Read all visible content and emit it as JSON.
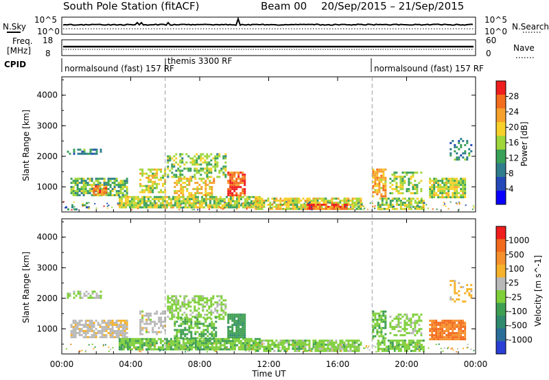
{
  "title": {
    "station": "South Pole Station (fitACF)",
    "beam": "Beam 00",
    "dates": "20/Sep/2015 – 21/Sep/2015"
  },
  "top_panels": {
    "nsky": {
      "left_label": "N.Sky",
      "right_label": "N.Search",
      "left_ticks": [
        "10^5",
        "10^0"
      ],
      "right_ticks": [
        "10^5",
        "10^0"
      ]
    },
    "freq": {
      "left_label_1": "Freq.",
      "left_label_2": "[MHz]",
      "right_label": "Nave",
      "left_ticks": [
        "18",
        "8"
      ],
      "right_ticks": [
        "60",
        "0"
      ]
    },
    "cpid": {
      "label": "CPID",
      "segments": [
        {
          "text": "normalsound (fast) 157 RF"
        },
        {
          "text": "themis 3300 RF"
        },
        {
          "text": "normalsound (fast) 157 RF"
        }
      ]
    }
  },
  "axes": {
    "x_ticks": [
      "00:00",
      "04:00",
      "08:00",
      "12:00",
      "16:00",
      "20:00",
      "00:00"
    ],
    "x_label": "Time UT",
    "y_label": "Slant Range [km]",
    "y_ticks": [
      "1000",
      "2000",
      "3000",
      "4000"
    ]
  },
  "chart_data": [
    {
      "type": "heatmap",
      "name": "power",
      "x_range_hours": [
        0,
        24
      ],
      "y_range_km": [
        180,
        4600
      ],
      "mode_changes_hours": [
        6.0,
        18.0
      ],
      "colorbar": {
        "label": "Power [dB]",
        "ticks": [
          "28",
          "24",
          "20",
          "16",
          "12",
          "8",
          "4"
        ],
        "range": [
          0,
          32
        ],
        "colors": [
          "#0a00ff",
          "#2549b8",
          "#2f7d8d",
          "#3aa159",
          "#9fd63a",
          "#f7d02a",
          "#f6a12c",
          "#f26d1d",
          "#ef1d1d"
        ]
      },
      "blobs": [
        {
          "t": [
            0.3,
            2.3
          ],
          "r": [
            2050,
            2250
          ],
          "val": 10,
          "d": 0.55
        },
        {
          "t": [
            0.5,
            3.8
          ],
          "r": [
            700,
            1300
          ],
          "val": 14,
          "d": 0.75
        },
        {
          "t": [
            1.8,
            2.6
          ],
          "r": [
            750,
            1050
          ],
          "val": 25,
          "d": 0.8
        },
        {
          "t": [
            0.2,
            1.6
          ],
          "r": [
            250,
            500
          ],
          "val": 9,
          "d": 0.35
        },
        {
          "t": [
            3.3,
            11.5
          ],
          "r": [
            300,
            700
          ],
          "val": 17,
          "d": 0.85
        },
        {
          "t": [
            4.5,
            6.0
          ],
          "r": [
            800,
            1600
          ],
          "val": 18,
          "d": 0.55
        },
        {
          "t": [
            6.1,
            9.5
          ],
          "r": [
            1300,
            2100
          ],
          "val": 15,
          "d": 0.5
        },
        {
          "t": [
            6.5,
            8.8
          ],
          "r": [
            700,
            1300
          ],
          "val": 20,
          "d": 0.55
        },
        {
          "t": [
            9.6,
            10.6
          ],
          "r": [
            700,
            1500
          ],
          "val": 27,
          "d": 0.85
        },
        {
          "t": [
            11.2,
            17.3
          ],
          "r": [
            300,
            650
          ],
          "val": 18,
          "d": 0.8
        },
        {
          "t": [
            14.2,
            16.5
          ],
          "r": [
            250,
            450
          ],
          "val": 27,
          "d": 0.8
        },
        {
          "t": [
            18.0,
            18.8
          ],
          "r": [
            700,
            1600
          ],
          "val": 22,
          "d": 0.75
        },
        {
          "t": [
            18.3,
            21.0
          ],
          "r": [
            300,
            650
          ],
          "val": 16,
          "d": 0.7
        },
        {
          "t": [
            19.0,
            20.8
          ],
          "r": [
            800,
            1500
          ],
          "val": 16,
          "d": 0.5
        },
        {
          "t": [
            21.3,
            23.4
          ],
          "r": [
            650,
            1300
          ],
          "val": 17,
          "d": 0.85
        },
        {
          "t": [
            22.5,
            23.8
          ],
          "r": [
            1900,
            2600
          ],
          "val": 10,
          "d": 0.25
        }
      ]
    },
    {
      "type": "heatmap",
      "name": "velocity",
      "x_range_hours": [
        0,
        24
      ],
      "y_range_km": [
        180,
        4600
      ],
      "mode_changes_hours": [
        6.0,
        18.0
      ],
      "colorbar": {
        "label": "Velocity [m s^-1]",
        "ticks": [
          "1000",
          "500",
          "100",
          "25",
          "-25",
          "-100",
          "-500",
          "-1000"
        ],
        "range": [
          -1200,
          1200
        ],
        "colors": [
          "#2a3fd6",
          "#2c6e9a",
          "#2f8a6e",
          "#3e9e52",
          "#7fcf3a",
          "#b9b9b9",
          "#f5b22a",
          "#f6902c",
          "#f26a1d",
          "#ef1d1d"
        ]
      },
      "blobs": [
        {
          "t": [
            0.3,
            2.3
          ],
          "r": [
            2000,
            2250
          ],
          "val": 0,
          "d": 0.55
        },
        {
          "t": [
            0.5,
            3.8
          ],
          "r": [
            700,
            1300
          ],
          "val": 150,
          "d": 0.75
        },
        {
          "t": [
            3.3,
            11.5
          ],
          "r": [
            300,
            700
          ],
          "val": -180,
          "d": 0.85
        },
        {
          "t": [
            4.5,
            6.0
          ],
          "r": [
            800,
            1600
          ],
          "val": 120,
          "d": 0.5
        },
        {
          "t": [
            6.1,
            9.5
          ],
          "r": [
            1300,
            2100
          ],
          "val": -60,
          "d": 0.5
        },
        {
          "t": [
            6.5,
            9.0
          ],
          "r": [
            700,
            1400
          ],
          "val": -250,
          "d": 0.55
        },
        {
          "t": [
            9.6,
            10.6
          ],
          "r": [
            700,
            1500
          ],
          "val": -400,
          "d": 0.85
        },
        {
          "t": [
            11.2,
            17.3
          ],
          "r": [
            300,
            650
          ],
          "val": -120,
          "d": 0.8
        },
        {
          "t": [
            18.0,
            18.8
          ],
          "r": [
            700,
            1600
          ],
          "val": -200,
          "d": 0.7
        },
        {
          "t": [
            18.3,
            21.0
          ],
          "r": [
            300,
            650
          ],
          "val": -150,
          "d": 0.7
        },
        {
          "t": [
            19.0,
            20.8
          ],
          "r": [
            800,
            1500
          ],
          "val": -80,
          "d": 0.5
        },
        {
          "t": [
            21.3,
            23.4
          ],
          "r": [
            650,
            1300
          ],
          "val": 700,
          "d": 0.85
        },
        {
          "t": [
            22.5,
            23.8
          ],
          "r": [
            1900,
            2600
          ],
          "val": 300,
          "d": 0.25
        }
      ]
    }
  ]
}
